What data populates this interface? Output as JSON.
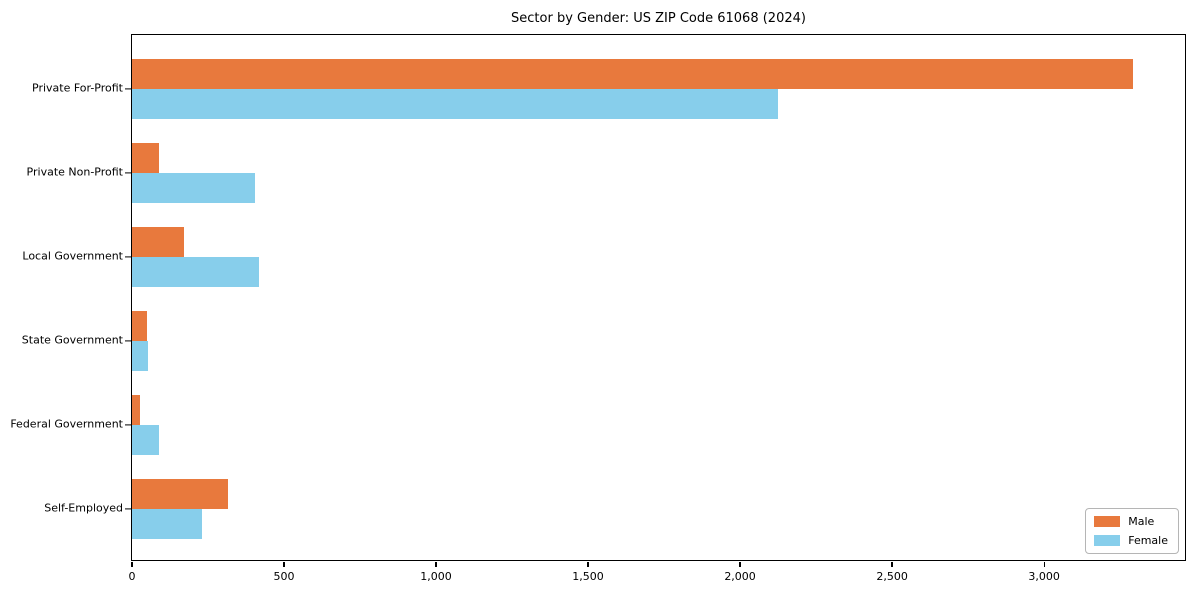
{
  "chart_data": {
    "type": "bar",
    "orientation": "horizontal",
    "title": "Sector by Gender: US ZIP Code 61068 (2024)",
    "categories": [
      "Private For-Profit",
      "Private Non-Profit",
      "Local Government",
      "State Government",
      "Federal Government",
      "Self-Employed"
    ],
    "series": [
      {
        "name": "Male",
        "color": "#e8793d",
        "values": [
          3300,
          90,
          170,
          48,
          26,
          318
        ]
      },
      {
        "name": "Female",
        "color": "#87ceeb",
        "values": [
          2130,
          405,
          420,
          52,
          88,
          230
        ]
      }
    ],
    "xlim": [
      0,
      3470
    ],
    "x_ticks": [
      {
        "value": 0,
        "label": "0"
      },
      {
        "value": 500,
        "label": "500"
      },
      {
        "value": 1000,
        "label": "1,000"
      },
      {
        "value": 1500,
        "label": "1,500"
      },
      {
        "value": 2000,
        "label": "2,000"
      },
      {
        "value": 2500,
        "label": "2,500"
      },
      {
        "value": 3000,
        "label": "3,000"
      }
    ],
    "grid": false,
    "legend_position": "lower right"
  }
}
